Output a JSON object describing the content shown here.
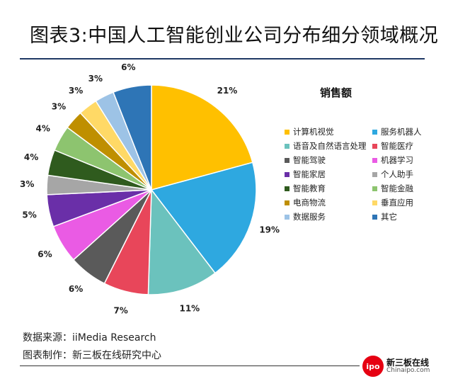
{
  "title": "图表3:中国人工智能创业公司分布细分领域概况",
  "chart_data": {
    "type": "pie",
    "legend_title": "销售额",
    "unit": "%",
    "start_angle": "12 o'clock",
    "direction": "clockwise",
    "legend_position": "right",
    "slices": [
      {
        "label": "计算机视觉",
        "value": 21,
        "display": "21%",
        "color": "#ffc000"
      },
      {
        "label": "服务机器人",
        "value": 19,
        "display": "19%",
        "color": "#2ea8e0"
      },
      {
        "label": "语音及自然语言处理",
        "value": 11,
        "display": "11%",
        "color": "#6bc2bd"
      },
      {
        "label": "智能医疗",
        "value": 7,
        "display": "7%",
        "color": "#e8465a"
      },
      {
        "label": "智能驾驶",
        "value": 6,
        "display": "6%",
        "color": "#5a5a5a"
      },
      {
        "label": "机器学习",
        "value": 6,
        "display": "6%",
        "color": "#ea5be4"
      },
      {
        "label": "智能家居",
        "value": 5,
        "display": "5%",
        "color": "#6a2fa8"
      },
      {
        "label": "个人助手",
        "value": 3,
        "display": "3%",
        "color": "#a6a6a6"
      },
      {
        "label": "智能教育",
        "value": 4,
        "display": "4%",
        "color": "#2f5b1e"
      },
      {
        "label": "智能金融",
        "value": 4,
        "display": "4%",
        "color": "#8dc46f"
      },
      {
        "label": "电商物流",
        "value": 3,
        "display": "3%",
        "color": "#bf8f00"
      },
      {
        "label": "垂直应用",
        "value": 3,
        "display": "3%",
        "color": "#ffd966"
      },
      {
        "label": "数据服务",
        "value": 3,
        "display": "3%",
        "color": "#9dc3e6"
      },
      {
        "label": "其它",
        "value": 6,
        "display": "6%",
        "color": "#2e75b6"
      }
    ]
  },
  "footer": {
    "source": "数据来源：iiMedia Research",
    "producer": "图表制作：新三板在线研究中心"
  },
  "logo": {
    "badge": "ipo",
    "name": "新三板在线",
    "domain": "Chinaipo.com"
  }
}
